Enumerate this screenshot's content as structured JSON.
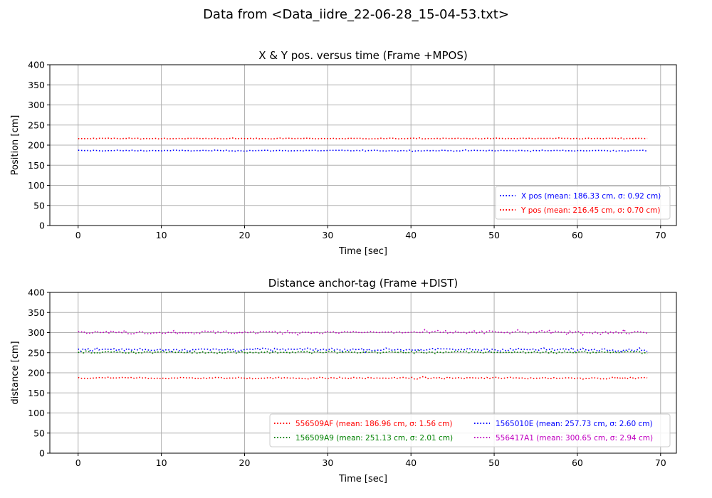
{
  "suptitle": "Data from <Data_iidre_22-06-28_15-04-53.txt>",
  "chart_data": [
    {
      "type": "line",
      "title": "X & Y pos. versus time (Frame +MPOS)",
      "xlabel": "Time [sec]",
      "ylabel": "Position [cm]",
      "xlim": [
        -3.4,
        71.9
      ],
      "ylim": [
        0,
        400
      ],
      "xticks": [
        0,
        10,
        20,
        30,
        40,
        50,
        60,
        70
      ],
      "yticks": [
        0,
        50,
        100,
        150,
        200,
        250,
        300,
        350,
        400
      ],
      "grid": true,
      "legend_position": "lower-right",
      "legend_columns": 1,
      "x_range": [
        0,
        68.4
      ],
      "series": [
        {
          "name": "X pos",
          "label": "X pos (mean: 186.33 cm, σ: 0.92 cm)",
          "color": "#0000ff",
          "mean": 186.33,
          "sigma": 0.92
        },
        {
          "name": "Y pos",
          "label": "Y pos (mean: 216.45 cm, σ: 0.70 cm)",
          "color": "#ff0000",
          "mean": 216.45,
          "sigma": 0.7
        }
      ]
    },
    {
      "type": "line",
      "title": "Distance anchor-tag (Frame +DIST)",
      "xlabel": "Time [sec]",
      "ylabel": "distance [cm]",
      "xlim": [
        -3.4,
        71.9
      ],
      "ylim": [
        0,
        400
      ],
      "xticks": [
        0,
        10,
        20,
        30,
        40,
        50,
        60,
        70
      ],
      "yticks": [
        0,
        50,
        100,
        150,
        200,
        250,
        300,
        350,
        400
      ],
      "grid": true,
      "legend_position": "lower-right",
      "legend_columns": 2,
      "x_range": [
        0,
        68.4
      ],
      "series": [
        {
          "name": "556509AF",
          "label": "556509AF (mean: 186.96 cm, σ: 1.56 cm)",
          "color": "#ff0000",
          "mean": 186.96,
          "sigma": 1.56
        },
        {
          "name": "156509A9",
          "label": "156509A9 (mean: 251.13 cm, σ: 2.01 cm)",
          "color": "#008000",
          "mean": 251.13,
          "sigma": 2.01
        },
        {
          "name": "1565010E",
          "label": "1565010E (mean: 257.73 cm, σ: 2.60 cm)",
          "color": "#0000ff",
          "mean": 257.73,
          "sigma": 2.6
        },
        {
          "name": "556417A1",
          "label": "556417A1 (mean: 300.65 cm, σ: 2.94 cm)",
          "color": "#c000c0",
          "mean": 300.65,
          "sigma": 2.94
        }
      ]
    }
  ]
}
